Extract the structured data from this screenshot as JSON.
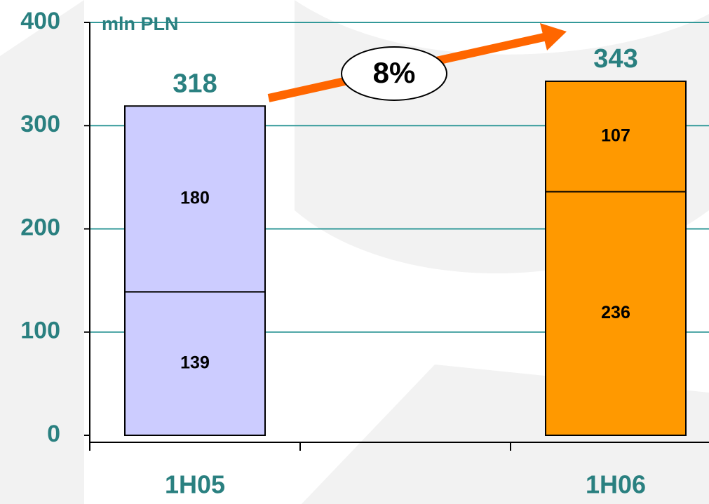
{
  "chart_data": {
    "type": "stacked_bar",
    "unit_label": "mln PLN",
    "annotation": "8%",
    "categories": [
      "1H05",
      "1H06"
    ],
    "category_colors": [
      "#ccccff",
      "#ff9900"
    ],
    "series": [
      {
        "values": [
          139,
          236
        ]
      },
      {
        "values": [
          180,
          107
        ]
      }
    ],
    "totals": [
      318,
      343
    ],
    "ylim": [
      0,
      400
    ],
    "yticks": [
      0,
      100,
      200,
      300,
      400
    ],
    "grid": true
  }
}
